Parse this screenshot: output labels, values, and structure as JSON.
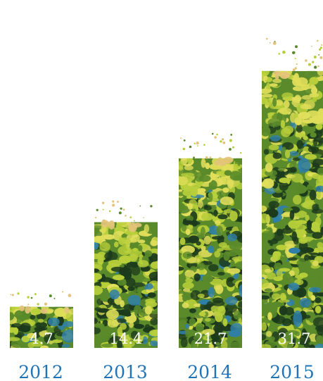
{
  "chart_data": {
    "type": "bar",
    "title": "",
    "xlabel": "",
    "ylabel": "",
    "categories": [
      "2012",
      "2013",
      "2014",
      "2015"
    ],
    "values": [
      4.7,
      14.4,
      21.7,
      31.7
    ],
    "value_labels": [
      "4.7",
      "14.4",
      "21.7",
      "31.7"
    ],
    "ylim": [
      0,
      35
    ],
    "grid": false,
    "legend": "none",
    "bar_style": "foliage-texture",
    "colors": {
      "foliage_dark": "#1c3a1c",
      "foliage_mid": "#5a8a2a",
      "foliage_light": "#b8cf3a",
      "foliage_yellow": "#e0de5a",
      "foliage_blue": "#2f7fa8",
      "foliage_tan": "#e3c37a",
      "year_label": "#1f73b7",
      "value_label": "#ffffff"
    }
  }
}
